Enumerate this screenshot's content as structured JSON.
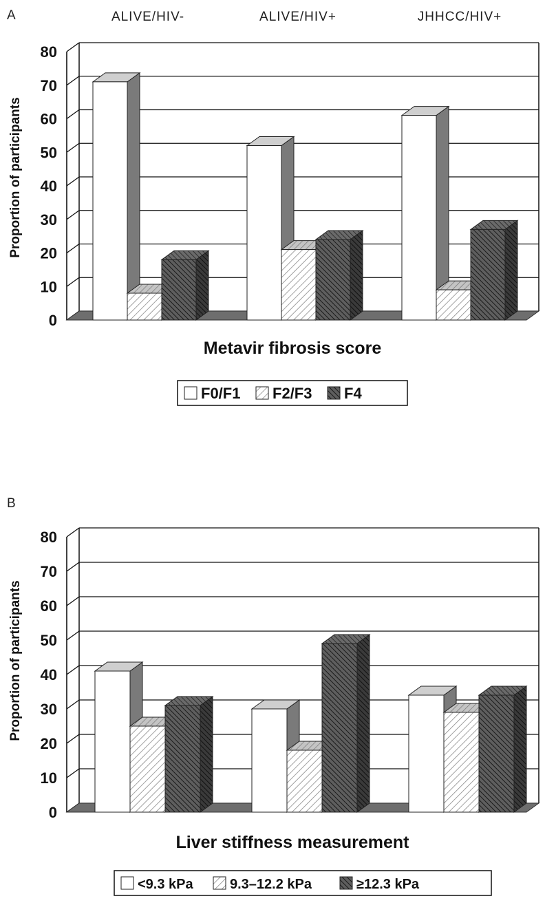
{
  "chart_data": [
    {
      "type": "bar",
      "panel_label": "A",
      "categories": [
        "ALIVE/HIV-",
        "ALIVE/HIV+",
        "JHHCC/HIV+"
      ],
      "series": [
        {
          "name": "F0/F1",
          "values": [
            71,
            52,
            61
          ],
          "fill": "white"
        },
        {
          "name": "F2/F3",
          "values": [
            8,
            21,
            9
          ],
          "fill": "light-hatch"
        },
        {
          "name": "F4",
          "values": [
            18,
            24,
            27
          ],
          "fill": "dark-hatch"
        }
      ],
      "xlabel": "Metavir fibrosis score",
      "ylabel": "Proportion of participants",
      "ylim": [
        0,
        80
      ],
      "yticks": [
        0,
        10,
        20,
        30,
        40,
        50,
        60,
        70,
        80
      ],
      "grid": true,
      "legend_position": "bottom"
    },
    {
      "type": "bar",
      "panel_label": "B",
      "categories": [
        "ALIVE/HIV-",
        "ALIVE/HIV+",
        "JHHCC/HIV+"
      ],
      "series": [
        {
          "name": "<9.3 kPa",
          "values": [
            41,
            30,
            34
          ],
          "fill": "white"
        },
        {
          "name": "9.3–12.2 kPa",
          "values": [
            25,
            18,
            29
          ],
          "fill": "light-hatch"
        },
        {
          "name": "≥12.3 kPa",
          "values": [
            31,
            49,
            34
          ],
          "fill": "dark-hatch"
        }
      ],
      "xlabel": "Liver stiffness measurement",
      "ylabel": "Proportion of participants",
      "ylim": [
        0,
        80
      ],
      "yticks": [
        0,
        10,
        20,
        30,
        40,
        50,
        60,
        70,
        80
      ],
      "grid": true,
      "legend_position": "bottom"
    }
  ],
  "colors": {
    "frame": "#111111",
    "grid": "#111111",
    "bar_white": "#ffffff",
    "bar_light": "#ffffff",
    "bar_light_stroke": "#8a8a8a",
    "bar_dark": "#5a5a5a",
    "bar_dark_stroke": "#1a1a1a",
    "side_shade": "#7a7a7a",
    "top_shade": "#cfcfcf",
    "floor": "#6e6e6e"
  }
}
